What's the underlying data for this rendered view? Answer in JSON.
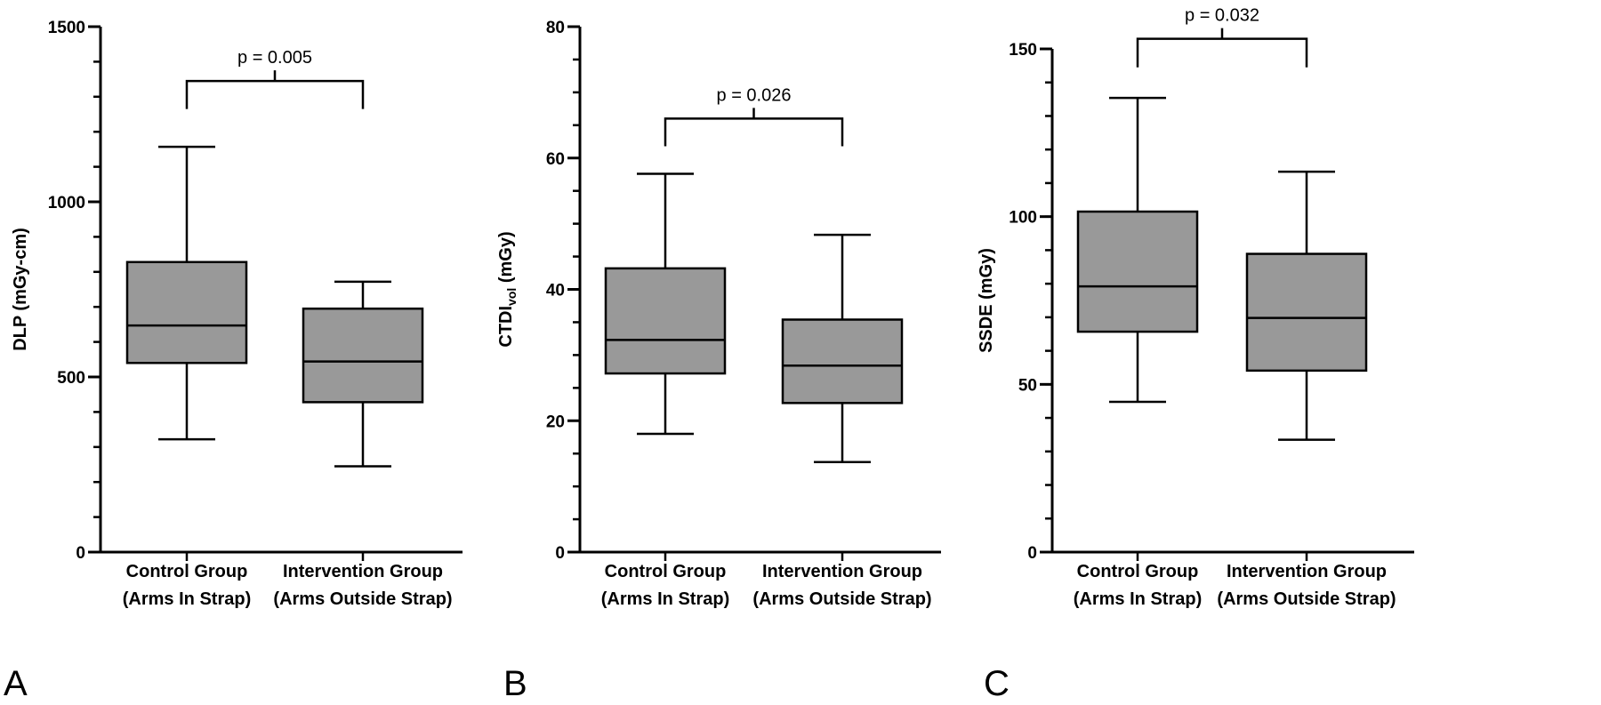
{
  "chart_data": [
    {
      "type": "box",
      "panel_label": "A",
      "ylabel": "DLP (mGy-cm)",
      "ylim": [
        0,
        1500
      ],
      "yticks": [
        "0",
        "500",
        "1000",
        "1500"
      ],
      "minor_tick_step": 100,
      "categories": [
        {
          "line1": "Control Group",
          "line2": "(Arms In Strap)"
        },
        {
          "line1": "Intervention Group",
          "line2": "(Arms Outside Strap)"
        }
      ],
      "boxes": [
        {
          "min": 322,
          "q1": 540,
          "median": 647,
          "q3": 828,
          "max": 1157
        },
        {
          "min": 245,
          "q1": 428,
          "median": 544,
          "q3": 695,
          "max": 772
        }
      ],
      "box_color": "#999999",
      "significance": {
        "label": "p = 0.005",
        "bracket_y": 1345,
        "leg_bottom": 1265
      }
    },
    {
      "type": "box",
      "panel_label": "B",
      "ylabel": "CTDI",
      "ylabel_sub": "vol",
      "ylabel_tail": " (mGy)",
      "ylim": [
        0,
        80
      ],
      "yticks": [
        "0",
        "20",
        "40",
        "60",
        "80"
      ],
      "minor_tick_step": 5,
      "categories": [
        {
          "line1": "Control Group",
          "line2": "(Arms In Strap)"
        },
        {
          "line1": "Intervention Group",
          "line2": "(Arms Outside Strap)"
        }
      ],
      "boxes": [
        {
          "min": 18.0,
          "q1": 27.2,
          "median": 32.3,
          "q3": 43.2,
          "max": 57.6
        },
        {
          "min": 13.7,
          "q1": 22.7,
          "median": 28.4,
          "q3": 35.4,
          "max": 48.3
        }
      ],
      "box_color": "#999999",
      "significance": {
        "label": "p = 0.026",
        "bracket_y": 66,
        "leg_bottom": 61.8
      }
    },
    {
      "type": "box",
      "panel_label": "C",
      "ylabel": "SSDE (mGy)",
      "ylim": [
        0,
        150
      ],
      "yticks": [
        "0",
        "50",
        "100",
        "150"
      ],
      "minor_tick_step": 10,
      "categories": [
        {
          "line1": "Control Group",
          "line2": "(Arms In Strap)"
        },
        {
          "line1": "Intervention Group",
          "line2": "(Arms Outside Strap)"
        }
      ],
      "boxes": [
        {
          "min": 44.8,
          "q1": 65.7,
          "median": 79.2,
          "q3": 101.5,
          "max": 135.4
        },
        {
          "min": 33.5,
          "q1": 54.1,
          "median": 69.8,
          "q3": 88.9,
          "max": 113.4
        }
      ],
      "box_color": "#999999",
      "significance": {
        "label": "p = 0.032",
        "bracket_y": 153,
        "leg_bottom": 144.5
      }
    }
  ]
}
